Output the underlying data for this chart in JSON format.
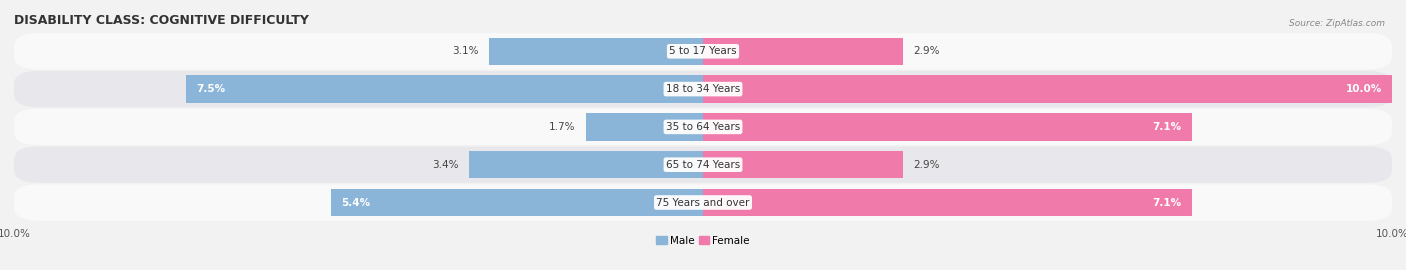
{
  "title": "DISABILITY CLASS: COGNITIVE DIFFICULTY",
  "source_text": "Source: ZipAtlas.com",
  "categories": [
    "5 to 17 Years",
    "18 to 34 Years",
    "35 to 64 Years",
    "65 to 74 Years",
    "75 Years and over"
  ],
  "male_values": [
    3.1,
    7.5,
    1.7,
    3.4,
    5.4
  ],
  "female_values": [
    2.9,
    10.0,
    7.1,
    2.9,
    7.1
  ],
  "male_color": "#8ab4d8",
  "female_color": "#f07aaa",
  "male_label": "Male",
  "female_label": "Female",
  "xlim": 10.0,
  "bg_color": "#f2f2f2",
  "row_colors": [
    "#f9f9f9",
    "#e8e8ec"
  ],
  "title_fontsize": 9,
  "label_fontsize": 7.5,
  "tick_fontsize": 7.5,
  "bar_height": 0.72,
  "inside_threshold": 4.0
}
